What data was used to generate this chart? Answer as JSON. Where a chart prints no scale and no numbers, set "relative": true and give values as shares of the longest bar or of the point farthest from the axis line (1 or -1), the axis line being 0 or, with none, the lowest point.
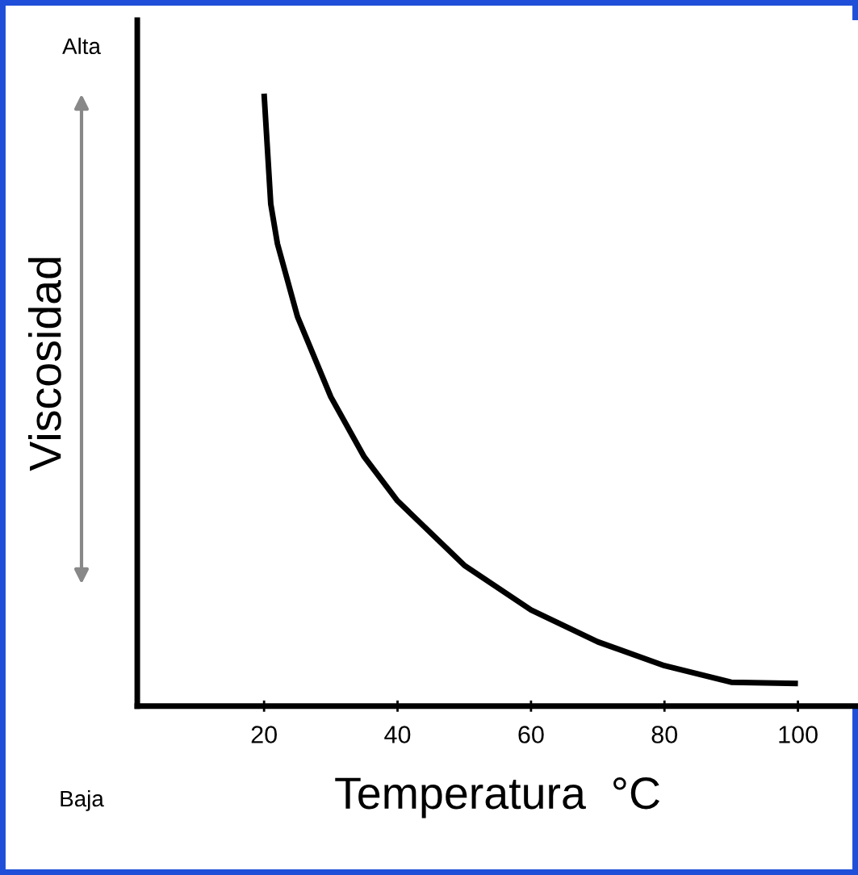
{
  "chart_data": {
    "type": "line",
    "relative": true,
    "xlabel": "Temperatura  °C",
    "ylabel": "Viscosidad",
    "annotations": [
      "Alta",
      "Baja"
    ],
    "x": [
      20,
      21,
      22,
      25,
      30,
      35,
      40,
      50,
      60,
      70,
      80,
      90,
      100
    ],
    "xlim": [
      1,
      109
    ],
    "xticks": [
      20,
      40,
      60,
      80,
      100
    ],
    "series": [
      {
        "color": "#000000",
        "values": [
          1.0,
          0.82,
          0.755,
          0.636,
          0.505,
          0.407,
          0.335,
          0.23,
          0.157,
          0.105,
          0.066,
          0.039,
          0.037
        ]
      }
    ],
    "grid": false,
    "legend": false,
    "marker": "none",
    "line_style": "solid"
  }
}
